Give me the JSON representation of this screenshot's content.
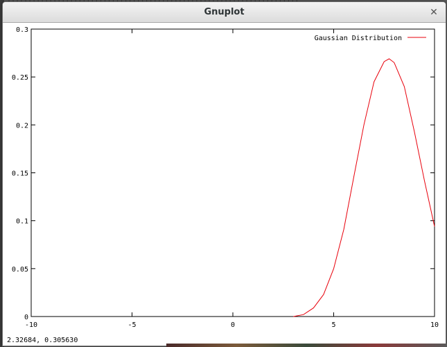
{
  "window": {
    "title": "Gnuplot"
  },
  "background": {
    "behind_text": "........................................................................"
  },
  "status_bar": {
    "coordinates": "2.32684,  0.305630"
  },
  "colors": {
    "series_line": "#e8000b",
    "axis": "#000000"
  },
  "icons": {
    "close": "close-icon"
  },
  "chart_data": {
    "type": "line",
    "title": "",
    "xlabel": "",
    "ylabel": "",
    "xlim": [
      -10,
      10
    ],
    "ylim": [
      0,
      0.3
    ],
    "x_ticks": [
      -10,
      -5,
      0,
      5,
      10
    ],
    "x_tick_labels": [
      "-10",
      "-5",
      "0",
      "5",
      "10"
    ],
    "y_ticks": [
      0,
      0.05,
      0.1,
      0.15,
      0.2,
      0.25,
      0.3
    ],
    "y_tick_labels": [
      "0",
      "0.05",
      "0.1",
      "0.15",
      "0.2",
      "0.25",
      "0.3"
    ],
    "grid": false,
    "legend_position": "top-right",
    "series": [
      {
        "name": "Gaussian Distribution",
        "color": "#e8000b",
        "x": [
          3.0,
          3.5,
          4.0,
          4.5,
          5.0,
          5.5,
          6.0,
          6.5,
          7.0,
          7.5,
          7.75,
          8.0,
          8.5,
          9.0,
          9.5,
          10.0
        ],
        "y": [
          0.0,
          0.002,
          0.009,
          0.023,
          0.05,
          0.091,
          0.146,
          0.2,
          0.245,
          0.266,
          0.269,
          0.265,
          0.24,
          0.193,
          0.142,
          0.094
        ]
      }
    ]
  }
}
